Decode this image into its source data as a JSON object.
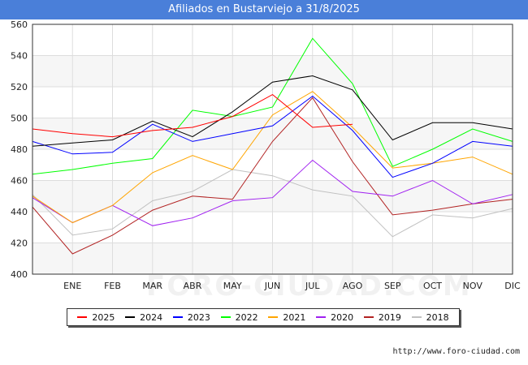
{
  "title": "Afiliados en Bustarviejo a 31/8/2025",
  "footer": "http://www.foro-ciudad.com",
  "watermark": "FORO-CIUDAD.COM",
  "chart_data": {
    "type": "line",
    "categories": [
      "",
      "ENE",
      "FEB",
      "MAR",
      "ABR",
      "MAY",
      "JUN",
      "JUL",
      "AGO",
      "SEP",
      "OCT",
      "NOV",
      "DIC"
    ],
    "ylim": [
      400,
      560
    ],
    "yticks": [
      400,
      420,
      440,
      460,
      480,
      500,
      520,
      540,
      560
    ],
    "grid": true,
    "legend_position": "bottom",
    "series": [
      {
        "name": "2025",
        "color": "#ff0000",
        "values": [
          493,
          490,
          488,
          492,
          494,
          501,
          515,
          494,
          496,
          null,
          null,
          null,
          null
        ]
      },
      {
        "name": "2024",
        "color": "#000000",
        "values": [
          482,
          484,
          486,
          498,
          488,
          504,
          523,
          527,
          518,
          486,
          497,
          497,
          493
        ]
      },
      {
        "name": "2023",
        "color": "#0000ff",
        "values": [
          485,
          477,
          478,
          496,
          485,
          490,
          495,
          514,
          492,
          462,
          471,
          485,
          482
        ]
      },
      {
        "name": "2022",
        "color": "#00ff00",
        "values": [
          464,
          467,
          471,
          474,
          505,
          501,
          507,
          551,
          522,
          469,
          480,
          493,
          485
        ]
      },
      {
        "name": "2021",
        "color": "#ffa500",
        "values": [
          450,
          433,
          444,
          465,
          476,
          467,
          502,
          517,
          494,
          468,
          471,
          475,
          464
        ]
      },
      {
        "name": "2020",
        "color": "#a020f0",
        "values": [
          449,
          433,
          444,
          431,
          436,
          447,
          449,
          473,
          453,
          450,
          460,
          445,
          451
        ]
      },
      {
        "name": "2019",
        "color": "#b22222",
        "values": [
          443,
          413,
          425,
          441,
          450,
          448,
          485,
          513,
          472,
          438,
          441,
          445,
          448
        ]
      },
      {
        "name": "2018",
        "color": "#c0c0c0",
        "values": [
          451,
          425,
          429,
          447,
          453,
          467,
          463,
          454,
          450,
          424,
          438,
          436,
          442
        ]
      }
    ]
  }
}
